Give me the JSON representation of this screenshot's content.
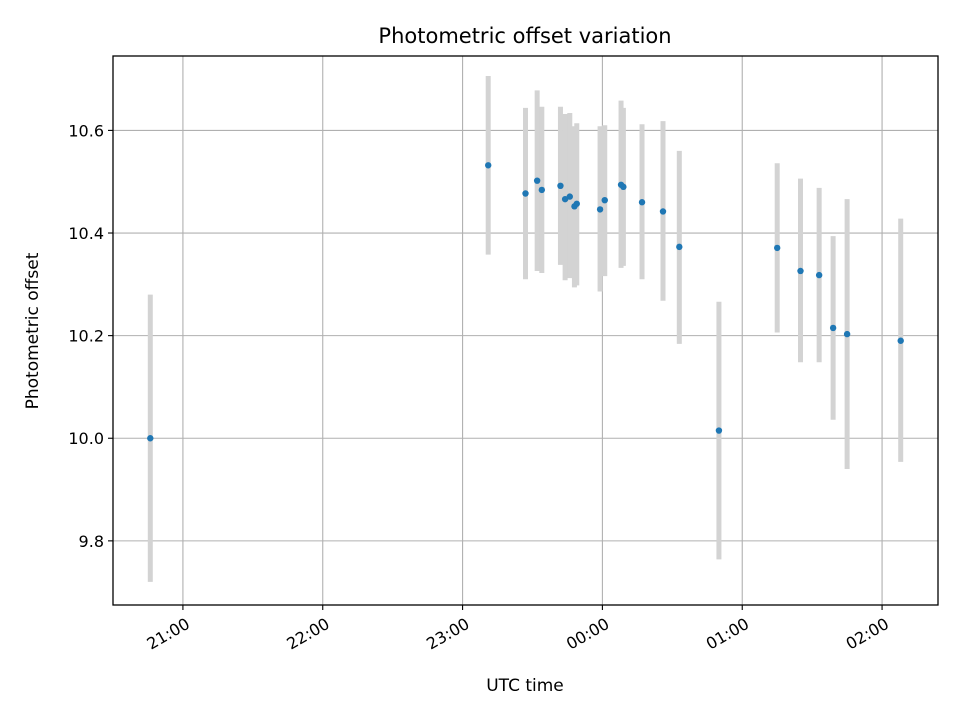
{
  "chart_data": {
    "type": "scatter",
    "title": "Photometric offset variation",
    "xlabel": "UTC time",
    "ylabel": "Photometric offset",
    "xlim": [
      "20:30",
      "02:24"
    ],
    "ylim": [
      9.675,
      10.745
    ],
    "grid": true,
    "x_day_offset_note_visible": false,
    "x_ticks": [
      "21:00",
      "22:00",
      "23:00",
      "00:00",
      "01:00",
      "02:00"
    ],
    "y_ticks": [
      9.8,
      10.0,
      10.2,
      10.4,
      10.6
    ],
    "y_tick_labels": [
      "9.8",
      "10.0",
      "10.2",
      "10.4",
      "10.6"
    ],
    "series": [
      {
        "name": "",
        "color": "#1f77b4",
        "errorbar_color": "#d3d3d3",
        "points": [
          {
            "t": "20:46",
            "y": 10.0,
            "yerr_low": 9.72,
            "yerr_high": 10.28
          },
          {
            "t": "23:11",
            "y": 10.532,
            "yerr_low": 10.358,
            "yerr_high": 10.706
          },
          {
            "t": "23:27",
            "y": 10.477,
            "yerr_low": 10.31,
            "yerr_high": 10.644
          },
          {
            "t": "23:32",
            "y": 10.502,
            "yerr_low": 10.326,
            "yerr_high": 10.678
          },
          {
            "t": "23:34",
            "y": 10.484,
            "yerr_low": 10.322,
            "yerr_high": 10.646
          },
          {
            "t": "23:42",
            "y": 10.492,
            "yerr_low": 10.338,
            "yerr_high": 10.646
          },
          {
            "t": "23:44",
            "y": 10.466,
            "yerr_low": 10.308,
            "yerr_high": 10.632
          },
          {
            "t": "23:46",
            "y": 10.471,
            "yerr_low": 10.312,
            "yerr_high": 10.634
          },
          {
            "t": "23:48",
            "y": 10.452,
            "yerr_low": 10.294,
            "yerr_high": 10.608
          },
          {
            "t": "23:49",
            "y": 10.457,
            "yerr_low": 10.298,
            "yerr_high": 10.614
          },
          {
            "t": "23:59",
            "y": 10.446,
            "yerr_low": 10.286,
            "yerr_high": 10.608
          },
          {
            "t": "00:01",
            "y": 10.464,
            "yerr_low": 10.316,
            "yerr_high": 10.61
          },
          {
            "t": "00:08",
            "y": 10.494,
            "yerr_low": 10.332,
            "yerr_high": 10.658
          },
          {
            "t": "00:09",
            "y": 10.49,
            "yerr_low": 10.336,
            "yerr_high": 10.644
          },
          {
            "t": "00:17",
            "y": 10.46,
            "yerr_low": 10.31,
            "yerr_high": 10.612
          },
          {
            "t": "00:26",
            "y": 10.442,
            "yerr_low": 10.268,
            "yerr_high": 10.618
          },
          {
            "t": "00:33",
            "y": 10.373,
            "yerr_low": 10.184,
            "yerr_high": 10.56
          },
          {
            "t": "00:50",
            "y": 10.015,
            "yerr_low": 9.764,
            "yerr_high": 10.266
          },
          {
            "t": "01:15",
            "y": 10.371,
            "yerr_low": 10.206,
            "yerr_high": 10.536
          },
          {
            "t": "01:25",
            "y": 10.326,
            "yerr_low": 10.148,
            "yerr_high": 10.506
          },
          {
            "t": "01:33",
            "y": 10.318,
            "yerr_low": 10.148,
            "yerr_high": 10.488
          },
          {
            "t": "01:39",
            "y": 10.215,
            "yerr_low": 10.036,
            "yerr_high": 10.394
          },
          {
            "t": "01:45",
            "y": 10.203,
            "yerr_low": 9.94,
            "yerr_high": 10.466
          },
          {
            "t": "02:08",
            "y": 10.19,
            "yerr_low": 9.954,
            "yerr_high": 10.428
          }
        ]
      }
    ]
  }
}
